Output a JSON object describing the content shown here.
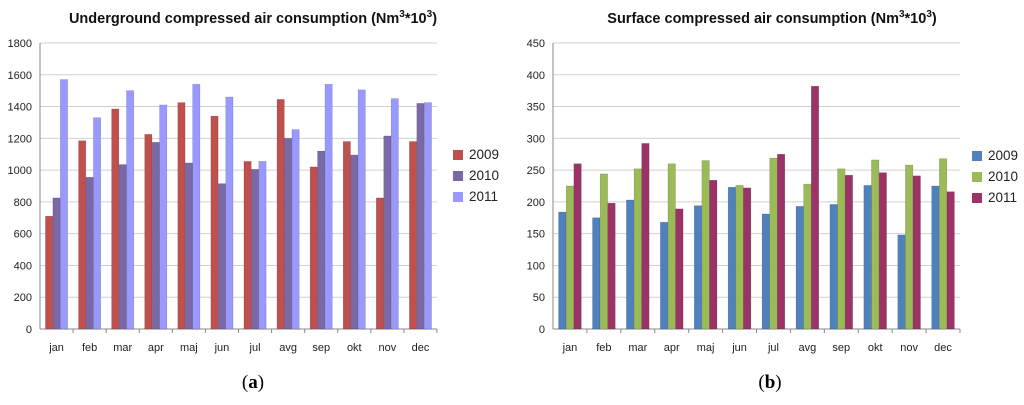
{
  "chart_data": [
    {
      "type": "bar",
      "title": "Underground compressed air consumption (Nm",
      "title_sup1": "3",
      "title_mid": "*10",
      "title_sup2": "3",
      "title_end": ")",
      "categories": [
        "jan",
        "feb",
        "mar",
        "apr",
        "maj",
        "jun",
        "jul",
        "avg",
        "sep",
        "okt",
        "nov",
        "dec"
      ],
      "series": [
        {
          "name": "2009",
          "color": "#c0504d",
          "values": [
            710,
            1185,
            1385,
            1225,
            1425,
            1340,
            1055,
            1445,
            1020,
            1180,
            825,
            1180
          ]
        },
        {
          "name": "2010",
          "color": "#7b68a6",
          "values": [
            825,
            955,
            1035,
            1175,
            1045,
            915,
            1005,
            1200,
            1120,
            1095,
            1215,
            1420
          ]
        },
        {
          "name": "2011",
          "color": "#9999ff",
          "values": [
            1570,
            1330,
            1500,
            1410,
            1540,
            1460,
            1055,
            1255,
            1540,
            1505,
            1450,
            1425
          ]
        }
      ],
      "ylim": [
        0,
        1800
      ],
      "yticks": [
        0,
        200,
        400,
        600,
        800,
        1000,
        1200,
        1400,
        1600,
        1800
      ],
      "legend_position": "right",
      "grid": true,
      "caption_letter": "a"
    },
    {
      "type": "bar",
      "title": "Surface compressed air consumption (Nm",
      "title_sup1": "3",
      "title_mid": "*10",
      "title_sup2": "3",
      "title_end": ")",
      "categories": [
        "jan",
        "feb",
        "mar",
        "apr",
        "maj",
        "jun",
        "jul",
        "avg",
        "sep",
        "okt",
        "nov",
        "dec"
      ],
      "series": [
        {
          "name": "2009",
          "color": "#4f81bd",
          "values": [
            184,
            175,
            203,
            168,
            194,
            223,
            181,
            193,
            196,
            226,
            148,
            225
          ]
        },
        {
          "name": "2010",
          "color": "#9bbb59",
          "values": [
            225,
            244,
            252,
            260,
            265,
            226,
            269,
            228,
            252,
            266,
            258,
            268
          ]
        },
        {
          "name": "2011",
          "color": "#9b3366",
          "values": [
            260,
            198,
            292,
            189,
            234,
            222,
            275,
            382,
            242,
            246,
            241,
            216
          ]
        }
      ],
      "ylim": [
        0,
        450
      ],
      "yticks": [
        0,
        50,
        100,
        150,
        200,
        250,
        300,
        350,
        400,
        450
      ],
      "legend_position": "right",
      "grid": true,
      "caption_letter": "b"
    }
  ],
  "captions": {
    "open": "(",
    "close": ")"
  }
}
